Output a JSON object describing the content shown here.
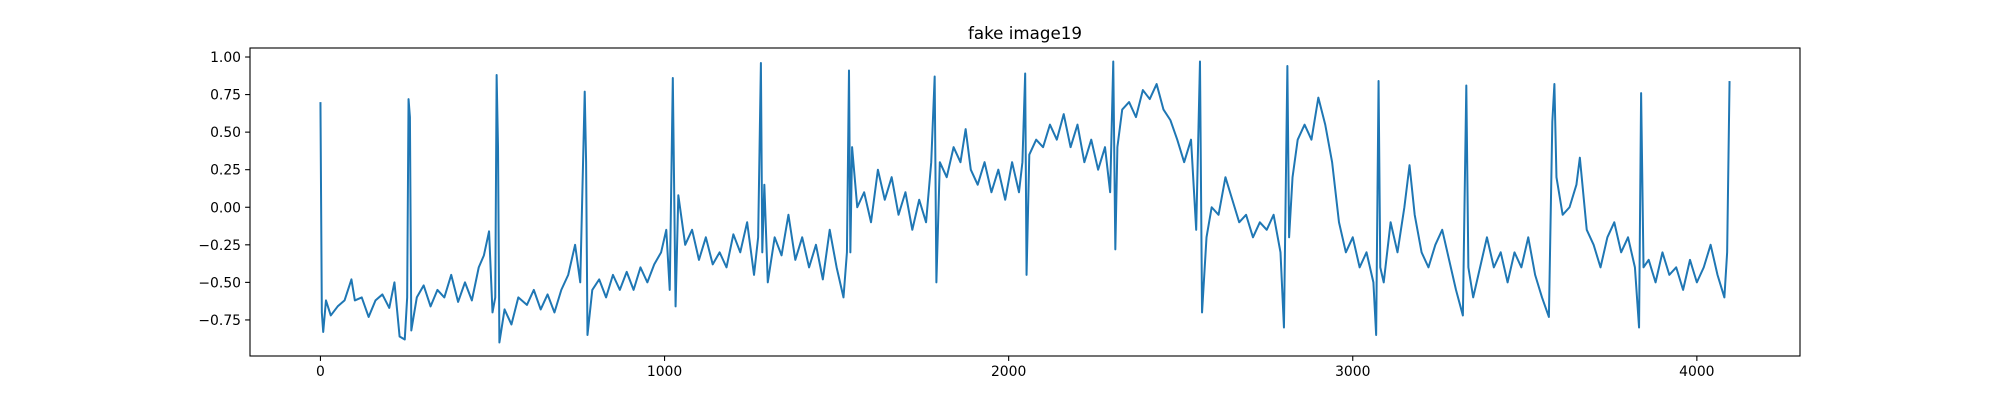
{
  "chart_data": {
    "type": "line",
    "title": "fake image19",
    "x": [
      0,
      4,
      8,
      16,
      30,
      50,
      70,
      90,
      100,
      120,
      140,
      160,
      180,
      200,
      215,
      230,
      245,
      252,
      256,
      260,
      264,
      280,
      300,
      320,
      340,
      360,
      380,
      400,
      420,
      440,
      460,
      475,
      490,
      500,
      508,
      512,
      516,
      520,
      535,
      555,
      575,
      600,
      620,
      640,
      660,
      680,
      700,
      720,
      740,
      755,
      768,
      772,
      776,
      790,
      810,
      830,
      850,
      870,
      890,
      910,
      930,
      950,
      970,
      990,
      1005,
      1015,
      1024,
      1028,
      1032,
      1040,
      1060,
      1080,
      1100,
      1120,
      1140,
      1160,
      1180,
      1200,
      1220,
      1240,
      1260,
      1272,
      1280,
      1284,
      1290,
      1300,
      1320,
      1340,
      1360,
      1380,
      1400,
      1420,
      1440,
      1460,
      1480,
      1500,
      1520,
      1530,
      1536,
      1540,
      1545,
      1560,
      1580,
      1600,
      1620,
      1640,
      1660,
      1680,
      1700,
      1720,
      1740,
      1760,
      1775,
      1785,
      1790,
      1800,
      1820,
      1840,
      1860,
      1875,
      1890,
      1910,
      1930,
      1950,
      1970,
      1990,
      2010,
      2030,
      2040,
      2048,
      2052,
      2060,
      2080,
      2100,
      2120,
      2140,
      2160,
      2180,
      2200,
      2220,
      2240,
      2260,
      2280,
      2295,
      2304,
      2310,
      2316,
      2330,
      2350,
      2370,
      2390,
      2410,
      2430,
      2450,
      2470,
      2490,
      2510,
      2530,
      2545,
      2556,
      2562,
      2575,
      2590,
      2610,
      2630,
      2650,
      2670,
      2690,
      2710,
      2730,
      2750,
      2770,
      2790,
      2800,
      2810,
      2815,
      2825,
      2840,
      2860,
      2880,
      2900,
      2920,
      2940,
      2960,
      2980,
      3000,
      3020,
      3040,
      3060,
      3068,
      3075,
      3080,
      3090,
      3110,
      3130,
      3150,
      3165,
      3180,
      3200,
      3220,
      3240,
      3260,
      3280,
      3300,
      3320,
      3330,
      3336,
      3350,
      3370,
      3390,
      3410,
      3430,
      3450,
      3470,
      3490,
      3510,
      3530,
      3550,
      3570,
      3580,
      3586,
      3592,
      3610,
      3630,
      3650,
      3660,
      3680,
      3700,
      3720,
      3740,
      3760,
      3780,
      3800,
      3820,
      3832,
      3838,
      3845,
      3860,
      3880,
      3900,
      3920,
      3940,
      3960,
      3980,
      4000,
      4020,
      4040,
      4060,
      4080,
      4088,
      4095
    ],
    "series": [
      {
        "color": "#1f77b4",
        "values": [
          0.7,
          -0.7,
          -0.83,
          -0.62,
          -0.72,
          -0.66,
          -0.62,
          -0.48,
          -0.62,
          -0.6,
          -0.73,
          -0.62,
          -0.58,
          -0.67,
          -0.5,
          -0.86,
          -0.88,
          -0.6,
          0.72,
          0.6,
          -0.82,
          -0.6,
          -0.52,
          -0.66,
          -0.55,
          -0.6,
          -0.45,
          -0.63,
          -0.5,
          -0.62,
          -0.4,
          -0.32,
          -0.16,
          -0.7,
          -0.6,
          0.88,
          0.4,
          -0.9,
          -0.68,
          -0.78,
          -0.6,
          -0.65,
          -0.55,
          -0.68,
          -0.58,
          -0.7,
          -0.55,
          -0.45,
          -0.25,
          -0.5,
          0.77,
          0.3,
          -0.85,
          -0.55,
          -0.48,
          -0.6,
          -0.45,
          -0.55,
          -0.43,
          -0.55,
          -0.4,
          -0.5,
          -0.38,
          -0.3,
          -0.15,
          -0.55,
          0.86,
          0.1,
          -0.66,
          0.08,
          -0.25,
          -0.15,
          -0.35,
          -0.2,
          -0.38,
          -0.3,
          -0.4,
          -0.18,
          -0.3,
          -0.1,
          -0.45,
          -0.2,
          0.96,
          -0.3,
          0.15,
          -0.5,
          -0.2,
          -0.32,
          -0.05,
          -0.35,
          -0.2,
          -0.4,
          -0.25,
          -0.48,
          -0.15,
          -0.4,
          -0.6,
          -0.3,
          0.91,
          -0.3,
          0.4,
          0.0,
          0.1,
          -0.1,
          0.25,
          0.05,
          0.2,
          -0.05,
          0.1,
          -0.15,
          0.05,
          -0.1,
          0.3,
          0.87,
          -0.5,
          0.3,
          0.2,
          0.4,
          0.3,
          0.52,
          0.25,
          0.15,
          0.3,
          0.1,
          0.25,
          0.05,
          0.3,
          0.1,
          0.3,
          0.89,
          -0.45,
          0.35,
          0.45,
          0.4,
          0.55,
          0.45,
          0.62,
          0.4,
          0.55,
          0.3,
          0.45,
          0.25,
          0.4,
          0.1,
          0.97,
          -0.28,
          0.4,
          0.65,
          0.7,
          0.6,
          0.78,
          0.72,
          0.82,
          0.65,
          0.58,
          0.45,
          0.3,
          0.45,
          -0.15,
          0.97,
          -0.7,
          -0.2,
          0.0,
          -0.05,
          0.2,
          0.05,
          -0.1,
          -0.05,
          -0.2,
          -0.1,
          -0.15,
          -0.05,
          -0.3,
          -0.8,
          0.94,
          -0.2,
          0.2,
          0.45,
          0.55,
          0.45,
          0.73,
          0.55,
          0.3,
          -0.1,
          -0.3,
          -0.2,
          -0.4,
          -0.3,
          -0.5,
          -0.85,
          0.84,
          -0.4,
          -0.5,
          -0.1,
          -0.3,
          0.0,
          0.28,
          -0.05,
          -0.3,
          -0.4,
          -0.25,
          -0.15,
          -0.35,
          -0.55,
          -0.72,
          0.81,
          -0.4,
          -0.6,
          -0.4,
          -0.2,
          -0.4,
          -0.3,
          -0.5,
          -0.3,
          -0.4,
          -0.2,
          -0.45,
          -0.6,
          -0.73,
          0.57,
          0.82,
          0.2,
          -0.05,
          0.0,
          0.15,
          0.33,
          -0.15,
          -0.25,
          -0.4,
          -0.2,
          -0.1,
          -0.3,
          -0.2,
          -0.4,
          -0.8,
          0.76,
          -0.4,
          -0.35,
          -0.5,
          -0.3,
          -0.45,
          -0.4,
          -0.55,
          -0.35,
          -0.5,
          -0.4,
          -0.25,
          -0.45,
          -0.6,
          -0.3,
          0.84
        ]
      }
    ],
    "xlim": [
      -204.75,
      4299.75
    ],
    "xticks": [
      0,
      1000,
      2000,
      3000,
      4000
    ],
    "ylim": [
      -0.99,
      1.06
    ],
    "yticks": [
      {
        "value": -0.75,
        "label": "−0.75"
      },
      {
        "value": -0.5,
        "label": "−0.50"
      },
      {
        "value": -0.25,
        "label": "−0.25"
      },
      {
        "value": 0,
        "label": "0.00"
      },
      {
        "value": 0.25,
        "label": "0.25"
      },
      {
        "value": 0.5,
        "label": "0.50"
      },
      {
        "value": 0.75,
        "label": "0.75"
      },
      {
        "value": 1,
        "label": "1.00"
      }
    ]
  }
}
